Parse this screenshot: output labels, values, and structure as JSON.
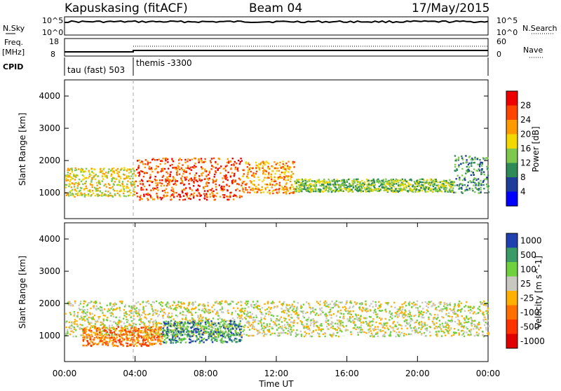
{
  "header": {
    "station": "Kapuskasing (fitACF)",
    "beam": "Beam 04",
    "date": "17/May/2015"
  },
  "top_panels": {
    "nsky_label": "N.Sky",
    "nsky_ticks": [
      "10^5",
      "10^0"
    ],
    "nsearch_label": "N.Search",
    "nsearch_ticks": [
      "10^5",
      "10^0"
    ],
    "freq_label": "Freq.",
    "freq_unit": "[MHz]",
    "freq_ticks": [
      "18",
      "8"
    ],
    "nave_label": "Nave",
    "nave_ticks": [
      "60",
      "0"
    ],
    "cpid_label": "CPID",
    "cpid_segments": [
      {
        "start": 0,
        "end": 4,
        "text": "tau (fast) 503"
      },
      {
        "start": 4,
        "end": 24,
        "text": "themis -3300"
      }
    ]
  },
  "chart_data": [
    {
      "type": "heatmap",
      "name": "power",
      "ylabel": "Slant Range [km]",
      "xlabel": "",
      "colorbar_label": "Power [dB]",
      "colorbar_ticks": [
        "28",
        "24",
        "20",
        "16",
        "12",
        "8",
        "4"
      ],
      "colorbar_colors": [
        "#0000ff",
        "#1e3c99",
        "#2e8b57",
        "#7ec850",
        "#f0d800",
        "#ff9900",
        "#ff4400",
        "#ee0000"
      ],
      "y_ticks": [
        1000,
        2000,
        3000,
        4000
      ],
      "x_range": [
        0,
        24
      ],
      "y_range": [
        200,
        4500
      ],
      "scatter_bands": [
        {
          "x0": 0.0,
          "x1": 4.0,
          "y0": 900,
          "y1": 1800,
          "level": 4
        },
        {
          "x0": 4.0,
          "x1": 10.0,
          "y0": 800,
          "y1": 2100,
          "level": 6
        },
        {
          "x0": 10.0,
          "x1": 13.0,
          "y0": 1000,
          "y1": 2000,
          "level": 5
        },
        {
          "x0": 13.0,
          "x1": 22.0,
          "y0": 1050,
          "y1": 1450,
          "level": 3
        },
        {
          "x0": 22.0,
          "x1": 24.0,
          "y0": 1000,
          "y1": 2200,
          "level": 2
        }
      ]
    },
    {
      "type": "heatmap",
      "name": "velocity",
      "ylabel": "Slant Range [km]",
      "xlabel": "Time UT",
      "colorbar_label": "Velocity [m s^-1]",
      "colorbar_ticks": [
        "1000",
        "500",
        "100",
        "25",
        "-25",
        "-100",
        "-500",
        "-1000"
      ],
      "colorbar_colors": [
        "#2040b0",
        "#3a9b66",
        "#6fd040",
        "#c8c8c0",
        "#ffb000",
        "#ff7000",
        "#ff3300",
        "#e00000"
      ],
      "x_ticks": [
        "00:00",
        "04:00",
        "08:00",
        "12:00",
        "16:00",
        "20:00",
        "00:00"
      ],
      "y_ticks": [
        1000,
        2000,
        3000,
        4000
      ],
      "x_range": [
        0,
        24
      ],
      "y_range": [
        200,
        4500
      ],
      "scatter_bands": [
        {
          "x0": 0.0,
          "x1": 24.0,
          "y0": 1000,
          "y1": 2100,
          "level": 3
        },
        {
          "x0": 1.0,
          "x1": 5.5,
          "y0": 700,
          "y1": 1300,
          "level": 5
        },
        {
          "x0": 5.5,
          "x1": 10.0,
          "y0": 800,
          "y1": 1500,
          "level": 1
        }
      ]
    }
  ]
}
